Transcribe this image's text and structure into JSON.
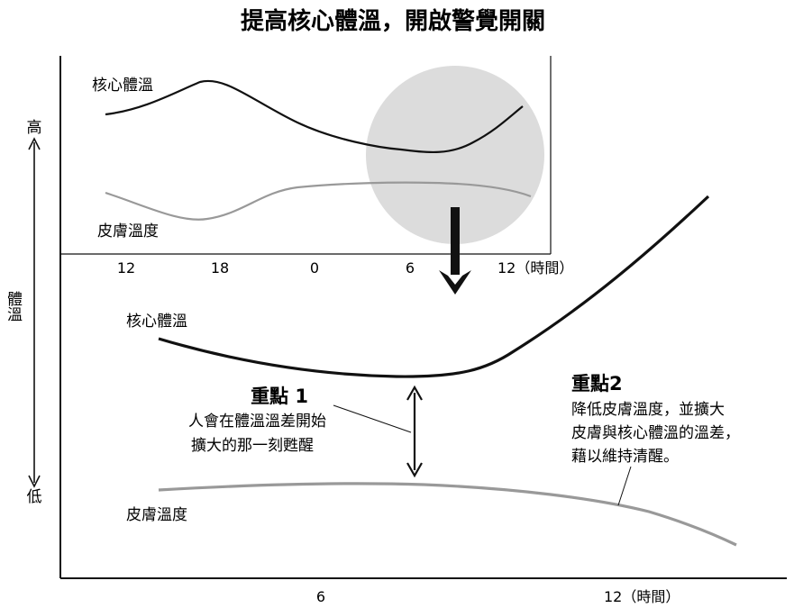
{
  "chart_data": {
    "type": "line",
    "title": "提高核心體溫，開啟警覺開關",
    "ylabel": "體溫",
    "y_high_label": "高",
    "y_low_label": "低",
    "main": {
      "x_ticks": [
        "6",
        "12（時間）"
      ],
      "core_label": "核心體溫",
      "skin_label": "皮膚溫度"
    },
    "inset": {
      "x_ticks": [
        "12",
        "18",
        "0",
        "6",
        "12（時間）"
      ],
      "core_label": "核心體溫",
      "skin_label": "皮膚溫度"
    },
    "annotations": {
      "point1_title": "重點 1",
      "point1_line1": "人會在體溫溫差開始",
      "point1_line2": "擴大的那一刻甦醒",
      "point2_title": "重點2",
      "point2_line1": "降低皮膚溫度，並擴大",
      "point2_line2": "皮膚與核心體溫的溫差，",
      "point2_line3": "藉以維持清醒。"
    },
    "colors": {
      "core": "#111111",
      "skin": "#999999",
      "highlight": "#dcdcdc"
    }
  }
}
